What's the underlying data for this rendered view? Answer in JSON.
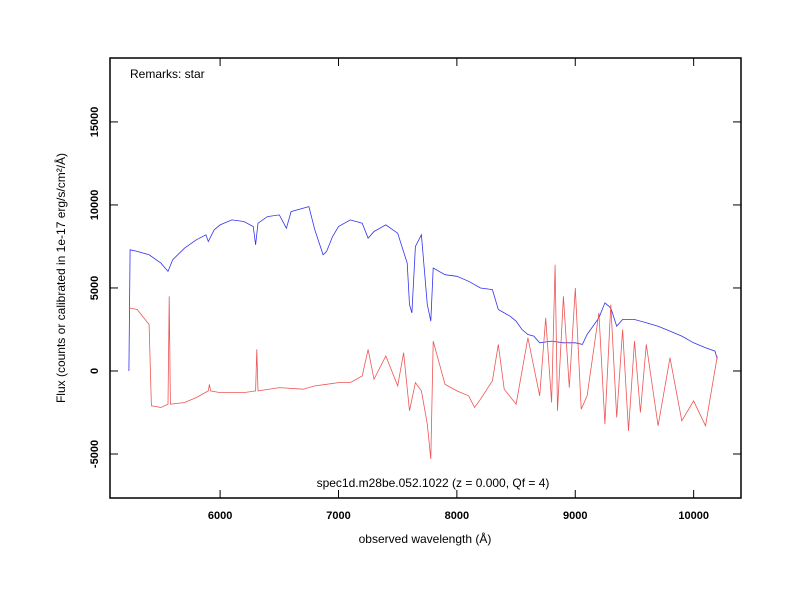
{
  "chart_data": {
    "type": "line",
    "annotations": [
      "Remarks: star",
      "spec1d.m28be.052.1022 (z = 0.000, Qf = 4)"
    ],
    "xlabel": "observed wavelength (Å)",
    "ylabel": "Flux (counts or calibrated in 1e-17 erg/s/cm²/Å)",
    "xlim": [
      5070,
      10400
    ],
    "ylim": [
      -7650,
      18850
    ],
    "xticks": [
      6000,
      7000,
      8000,
      9000,
      10000
    ],
    "yticks": [
      -5000,
      0,
      5000,
      10000,
      15000
    ],
    "series": [
      {
        "color": "#3333ee",
        "x": [
          5230,
          5240,
          5300,
          5400,
          5500,
          5560,
          5600,
          5700,
          5800,
          5880,
          5900,
          5950,
          6000,
          6100,
          6200,
          6280,
          6300,
          6320,
          6400,
          6500,
          6560,
          6600,
          6700,
          6750,
          6800,
          6870,
          6900,
          6950,
          7000,
          7100,
          7200,
          7250,
          7300,
          7400,
          7500,
          7580,
          7600,
          7620,
          7650,
          7700,
          7750,
          7780,
          7800,
          7900,
          8000,
          8100,
          8200,
          8300,
          8350,
          8400,
          8450,
          8500,
          8550,
          8600,
          8650,
          8700,
          8800,
          8900,
          9000,
          9060,
          9100,
          9200,
          9250,
          9300,
          9350,
          9400,
          9500,
          9600,
          9700,
          9800,
          9900,
          10000,
          10100,
          10180,
          10200
        ],
        "values": [
          0,
          7300,
          7200,
          7000,
          6500,
          6000,
          6700,
          7400,
          7900,
          8200,
          7800,
          8500,
          8800,
          9100,
          9000,
          8700,
          7600,
          8900,
          9300,
          9400,
          8600,
          9600,
          9800,
          9900,
          8500,
          7000,
          7200,
          8100,
          8700,
          9100,
          8900,
          8000,
          8400,
          8800,
          8300,
          6500,
          4000,
          3500,
          7500,
          8200,
          4000,
          3000,
          6200,
          5800,
          5700,
          5400,
          5000,
          4900,
          3700,
          3500,
          3300,
          3000,
          2500,
          2200,
          2100,
          1700,
          1800,
          1700,
          1700,
          1600,
          2200,
          3200,
          4100,
          3800,
          2700,
          3100,
          3100,
          2900,
          2700,
          2400,
          2100,
          1700,
          1400,
          1200,
          700
        ]
      },
      {
        "color": "#ee5555",
        "x": [
          5230,
          5300,
          5400,
          5420,
          5500,
          5560,
          5570,
          5580,
          5700,
          5800,
          5900,
          5910,
          5920,
          6000,
          6200,
          6300,
          6310,
          6320,
          6500,
          6700,
          6800,
          6900,
          7000,
          7100,
          7200,
          7250,
          7300,
          7400,
          7500,
          7550,
          7600,
          7650,
          7700,
          7750,
          7780,
          7800,
          7900,
          8000,
          8100,
          8150,
          8200,
          8300,
          8350,
          8400,
          8500,
          8600,
          8700,
          8750,
          8800,
          8830,
          8850,
          8900,
          8950,
          9000,
          9050,
          9100,
          9200,
          9250,
          9300,
          9350,
          9400,
          9450,
          9500,
          9550,
          9600,
          9700,
          9800,
          9900,
          10000,
          10100,
          10200
        ],
        "values": [
          3800,
          3700,
          2800,
          -2100,
          -2200,
          -2000,
          4500,
          -2000,
          -1900,
          -1600,
          -1200,
          -800,
          -1200,
          -1300,
          -1300,
          -1200,
          1300,
          -1200,
          -1000,
          -1100,
          -900,
          -800,
          -700,
          -700,
          -300,
          1300,
          -500,
          900,
          -900,
          1100,
          -2400,
          -700,
          -1200,
          -3200,
          -5300,
          1800,
          -800,
          -1200,
          -1500,
          -2200,
          -1700,
          -600,
          1600,
          -1100,
          -2000,
          2000,
          -1500,
          3200,
          -1900,
          6400,
          -2400,
          4500,
          -1000,
          5000,
          -2300,
          -1500,
          3500,
          -3200,
          4000,
          -2800,
          2500,
          -3600,
          1800,
          -2500,
          1600,
          -3300,
          800,
          -3000,
          -1800,
          -3300,
          900
        ]
      }
    ]
  }
}
